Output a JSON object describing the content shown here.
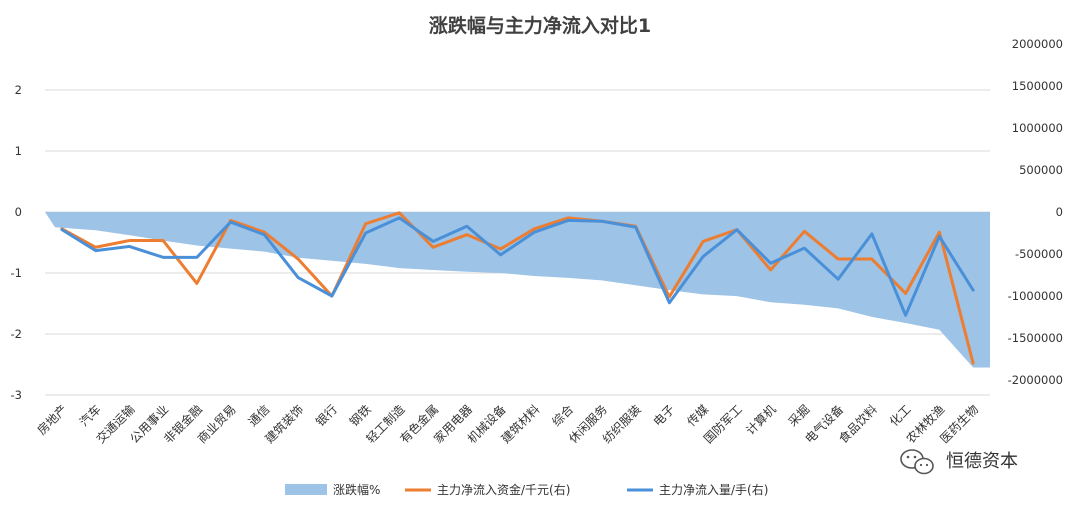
{
  "chart_data": {
    "type": "area",
    "title": "涨跌幅与主力净流入对比1",
    "categories": [
      "房地产",
      "汽车",
      "交通运输",
      "公用事业",
      "非银金融",
      "商业贸易",
      "通信",
      "建筑装饰",
      "银行",
      "钢铁",
      "轻工制造",
      "有色金属",
      "家用电器",
      "机械设备",
      "建筑材料",
      "综合",
      "休闲服务",
      "纺织服装",
      "电子",
      "传媒",
      "国防军工",
      "计算机",
      "采掘",
      "电气设备",
      "食品饮料",
      "化工",
      "农林牧渔",
      "医药生物"
    ],
    "y_left": {
      "ylim": [
        -3,
        2
      ],
      "ticks": [
        "2",
        "1",
        "0",
        "-1",
        "-2",
        "-3"
      ],
      "tick_values": [
        2,
        1,
        0,
        -1,
        -2,
        -3
      ]
    },
    "y_right": {
      "ylim": [
        -2000000,
        2000000
      ],
      "ticks": [
        "2000000",
        "1500000",
        "1000000",
        "500000",
        "0",
        "-500000",
        "-1000000",
        "-1500000",
        "-2000000"
      ],
      "tick_values": [
        2000000,
        1500000,
        1000000,
        500000,
        0,
        -500000,
        -1000000,
        -1500000,
        -2000000
      ]
    },
    "grid": true,
    "legend_position": "bottom",
    "series": [
      {
        "name": "涨跌幅%",
        "type": "area",
        "axis": "left",
        "color": "#9dc3e6",
        "values": [
          -0.25,
          -0.3,
          -0.38,
          -0.47,
          -0.55,
          -0.6,
          -0.65,
          -0.75,
          -0.8,
          -0.85,
          -0.92,
          -0.95,
          -0.98,
          -1.0,
          -1.05,
          -1.08,
          -1.12,
          -1.2,
          -1.28,
          -1.35,
          -1.38,
          -1.48,
          -1.52,
          -1.58,
          -1.72,
          -1.82,
          -1.93,
          -2.55
        ]
      },
      {
        "name": "主力净流入资金/千元(右)",
        "type": "line",
        "axis": "right",
        "color": "#ed7d31",
        "values": [
          -200000,
          -420000,
          -340000,
          -340000,
          -850000,
          -100000,
          -240000,
          -560000,
          -1000000,
          -140000,
          -10000,
          -420000,
          -270000,
          -440000,
          -200000,
          -70000,
          -110000,
          -170000,
          -1010000,
          -350000,
          -210000,
          -690000,
          -230000,
          -560000,
          -560000,
          -970000,
          -240000,
          -1800000
        ]
      },
      {
        "name": "主力净流入量/手(右)",
        "type": "line",
        "axis": "right",
        "color": "#4a90d9",
        "values": [
          -210000,
          -460000,
          -410000,
          -540000,
          -540000,
          -120000,
          -270000,
          -780000,
          -1000000,
          -250000,
          -70000,
          -350000,
          -170000,
          -510000,
          -240000,
          -100000,
          -110000,
          -180000,
          -1080000,
          -530000,
          -210000,
          -610000,
          -430000,
          -800000,
          -260000,
          -1230000,
          -290000,
          -930000
        ]
      }
    ]
  },
  "watermark": {
    "icon": "wechat-icon",
    "text": "恒德资本"
  }
}
